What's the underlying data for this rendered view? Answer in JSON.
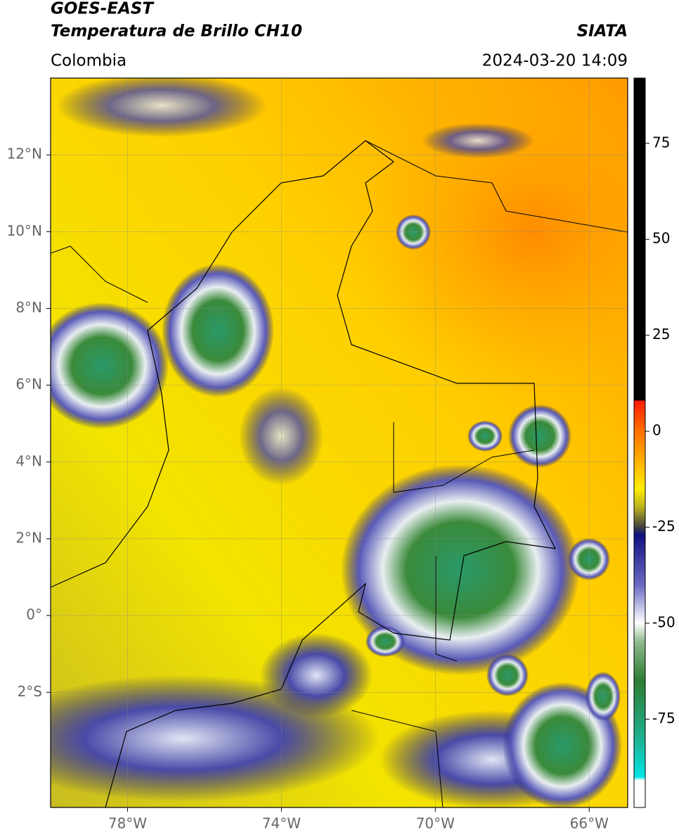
{
  "header": {
    "title": "GOES-EAST",
    "subtitle": "Temperatura de Brillo CH10",
    "region": "Colombia",
    "source": "SIATA",
    "datetime": "2024-03-20 14:09"
  },
  "map": {
    "xlim": [
      -80,
      -65
    ],
    "ylim": [
      -5,
      14
    ],
    "xticks": [
      {
        "value": -78,
        "label": "78°W"
      },
      {
        "value": -74,
        "label": "74°W"
      },
      {
        "value": -70,
        "label": "70°W"
      },
      {
        "value": -66,
        "label": "66°W"
      }
    ],
    "yticks": [
      {
        "value": 12,
        "label": "12°N"
      },
      {
        "value": 10,
        "label": "10°N"
      },
      {
        "value": 8,
        "label": "8°N"
      },
      {
        "value": 6,
        "label": "6°N"
      },
      {
        "value": 4,
        "label": "4°N"
      },
      {
        "value": 2,
        "label": "2°N"
      },
      {
        "value": 0,
        "label": "0°"
      },
      {
        "value": -2,
        "label": "2°S"
      }
    ],
    "grid": true
  },
  "colorbar": {
    "lim": [
      -98,
      92
    ],
    "ticks": [
      75,
      50,
      25,
      0,
      -25,
      -50,
      -75
    ]
  }
}
